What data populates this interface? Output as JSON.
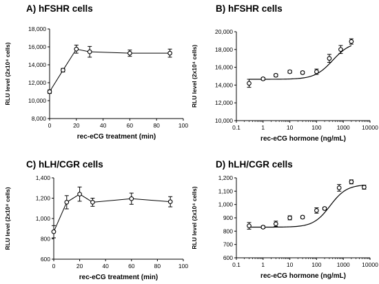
{
  "chart_data": [
    {
      "panel": "A",
      "title": "A) hFSHR cells",
      "type": "line",
      "xlabel": "rec-eCG treatment (min)",
      "ylabel": "RLU level (2x10⁴ cells)",
      "xscale": "linear",
      "xlim": [
        0,
        100
      ],
      "ylim": [
        8000,
        18000
      ],
      "xticks": [
        0,
        20,
        40,
        60,
        80,
        100
      ],
      "yticks": [
        8000,
        10000,
        12000,
        14000,
        16000,
        18000
      ],
      "xtick_labels": [
        "0",
        "20",
        "40",
        "60",
        "80",
        "100"
      ],
      "ytick_labels": [
        "8,000",
        "10,000",
        "12,000",
        "14,000",
        "16,000",
        "18,000"
      ],
      "grid": false,
      "marker": "circle-open",
      "points": [
        {
          "x": 0,
          "y": 11000,
          "err": 200
        },
        {
          "x": 10,
          "y": 13400,
          "err": 200
        },
        {
          "x": 20,
          "y": 15750,
          "err": 450
        },
        {
          "x": 30,
          "y": 15450,
          "err": 600
        },
        {
          "x": 60,
          "y": 15300,
          "err": 350
        },
        {
          "x": 90,
          "y": 15300,
          "err": 450
        }
      ]
    },
    {
      "panel": "B",
      "title": "B) hFSHR cells",
      "type": "scatter",
      "xlabel": "rec-eCG hormone (ng/mL)",
      "ylabel": "RLU level (2x10⁴ cells)",
      "xscale": "log",
      "xlim": [
        0.1,
        10000
      ],
      "ylim": [
        10000,
        20000
      ],
      "xticks": [
        0.1,
        1,
        10,
        100,
        1000,
        10000
      ],
      "yticks": [
        10000,
        12000,
        14000,
        16000,
        18000,
        20000
      ],
      "xtick_labels": [
        "0.1",
        "1",
        "10",
        "100",
        "1000",
        "10000"
      ],
      "ytick_labels": [
        "10,000",
        "12,000",
        "14,000",
        "16,000",
        "18,000",
        "20,000"
      ],
      "grid": false,
      "marker": "circle-open",
      "points": [
        {
          "x": 0.3,
          "y": 14200,
          "err": 450
        },
        {
          "x": 1,
          "y": 14700,
          "err": 150
        },
        {
          "x": 3,
          "y": 15100,
          "err": 150
        },
        {
          "x": 10,
          "y": 15500,
          "err": 150
        },
        {
          "x": 30,
          "y": 15400,
          "err": 150
        },
        {
          "x": 100,
          "y": 15500,
          "err": 300
        },
        {
          "x": 300,
          "y": 17000,
          "err": 450
        },
        {
          "x": 800,
          "y": 18000,
          "err": 450
        },
        {
          "x": 2000,
          "y": 18900,
          "err": 300
        }
      ],
      "fit": {
        "bottom": 14650,
        "top": 18900,
        "ec50": 400,
        "hill": 1.3,
        "x_range": [
          0.3,
          2000
        ]
      }
    },
    {
      "panel": "C",
      "title": "C) hLH/CGR cells",
      "type": "line",
      "xlabel": "rec-eCG treatment (min)",
      "ylabel": "RLU level (2x10⁴ cells)",
      "xscale": "linear",
      "xlim": [
        0,
        100
      ],
      "ylim": [
        600,
        1400
      ],
      "xticks": [
        0,
        20,
        40,
        60,
        80,
        100
      ],
      "yticks": [
        600,
        800,
        1000,
        1200,
        1400
      ],
      "xtick_labels": [
        "0",
        "20",
        "40",
        "60",
        "80",
        "100"
      ],
      "ytick_labels": [
        "600",
        "800",
        "1,000",
        "1,200",
        "1,400"
      ],
      "grid": false,
      "marker": "circle-open",
      "points": [
        {
          "x": 0,
          "y": 870,
          "err": 60
        },
        {
          "x": 10,
          "y": 1160,
          "err": 65
        },
        {
          "x": 20,
          "y": 1240,
          "err": 70
        },
        {
          "x": 30,
          "y": 1160,
          "err": 40
        },
        {
          "x": 60,
          "y": 1195,
          "err": 55
        },
        {
          "x": 90,
          "y": 1165,
          "err": 50
        }
      ]
    },
    {
      "panel": "D",
      "title": "D) hLH/CGR cells",
      "type": "scatter",
      "xlabel": "rec-eCG hormone (ng/mL)",
      "ylabel": "RLU level (2x10⁴ cells)",
      "xscale": "log",
      "xlim": [
        0.1,
        10000
      ],
      "ylim": [
        600,
        1200
      ],
      "xticks": [
        0.1,
        1,
        10,
        100,
        1000,
        10000
      ],
      "yticks": [
        600,
        700,
        800,
        900,
        1000,
        1100,
        1200
      ],
      "xtick_labels": [
        "0.1",
        "1",
        "10",
        "100",
        "1000",
        "10000"
      ],
      "ytick_labels": [
        "600",
        "700",
        "800",
        "900",
        "1,000",
        "1,100",
        "1,200"
      ],
      "grid": false,
      "marker": "circle-open",
      "points": [
        {
          "x": 0.3,
          "y": 840,
          "err": 25
        },
        {
          "x": 1,
          "y": 830,
          "err": 10
        },
        {
          "x": 3,
          "y": 855,
          "err": 20
        },
        {
          "x": 10,
          "y": 900,
          "err": 15
        },
        {
          "x": 30,
          "y": 905,
          "err": 10
        },
        {
          "x": 100,
          "y": 955,
          "err": 20
        },
        {
          "x": 200,
          "y": 970,
          "err": 10
        },
        {
          "x": 700,
          "y": 1125,
          "err": 25
        },
        {
          "x": 2000,
          "y": 1170,
          "err": 15
        },
        {
          "x": 6000,
          "y": 1130,
          "err": 15
        }
      ],
      "fit": {
        "bottom": 830,
        "top": 1150,
        "ec50": 320,
        "hill": 1.4,
        "x_range": [
          0.3,
          6000
        ]
      }
    }
  ]
}
